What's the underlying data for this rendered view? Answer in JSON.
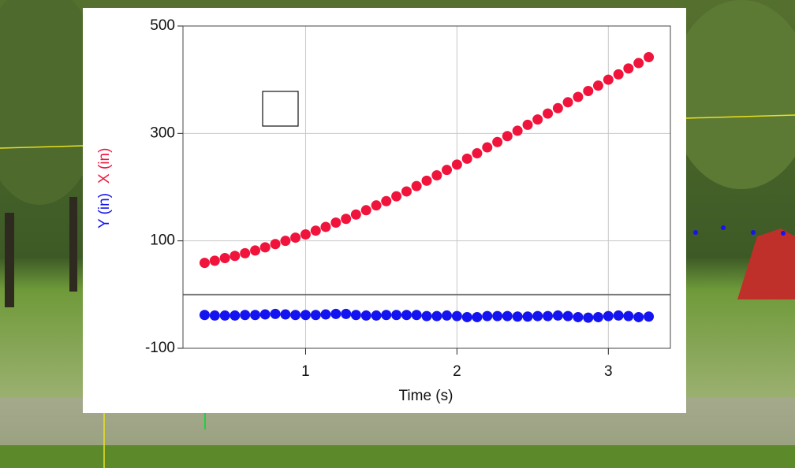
{
  "chart_data": {
    "type": "scatter",
    "xlabel": "Time (s)",
    "x": [
      0.333,
      0.4,
      0.467,
      0.533,
      0.6,
      0.667,
      0.733,
      0.8,
      0.867,
      0.933,
      1.0,
      1.067,
      1.133,
      1.2,
      1.267,
      1.333,
      1.4,
      1.467,
      1.533,
      1.6,
      1.667,
      1.733,
      1.8,
      1.867,
      1.933,
      2.0,
      2.067,
      2.133,
      2.2,
      2.267,
      2.333,
      2.4,
      2.467,
      2.533,
      2.6,
      2.667,
      2.733,
      2.8,
      2.867,
      2.933,
      3.0,
      3.067,
      3.133,
      3.2,
      3.267
    ],
    "series": [
      {
        "name": "X (in)",
        "color": "#f0143c",
        "values": [
          59,
          63,
          68,
          72,
          77,
          82,
          88,
          94,
          100,
          106,
          112,
          119,
          126,
          134,
          141,
          149,
          157,
          166,
          174,
          183,
          192,
          202,
          212,
          222,
          232,
          242,
          253,
          263,
          274,
          284,
          295,
          305,
          316,
          326,
          337,
          347,
          358,
          368,
          379,
          389,
          400,
          410,
          421,
          431,
          442
        ]
      },
      {
        "name": "Y (in)",
        "color": "#1414f0",
        "values": [
          -38,
          -39,
          -39,
          -39,
          -38,
          -38,
          -37,
          -36,
          -37,
          -38,
          -38,
          -38,
          -37,
          -36,
          -36,
          -38,
          -39,
          -39,
          -38,
          -38,
          -38,
          -38,
          -40,
          -40,
          -39,
          -40,
          -42,
          -42,
          -40,
          -40,
          -40,
          -41,
          -41,
          -40,
          -40,
          -39,
          -40,
          -42,
          -43,
          -42,
          -40,
          -39,
          -40,
          -42,
          -41
        ]
      }
    ],
    "xlim": [
      0.19,
      3.41
    ],
    "xticks": [
      1,
      2,
      3
    ],
    "ylim": [
      -100,
      500
    ],
    "yticks": [
      -100,
      100,
      300,
      500
    ],
    "grid": true
  }
}
